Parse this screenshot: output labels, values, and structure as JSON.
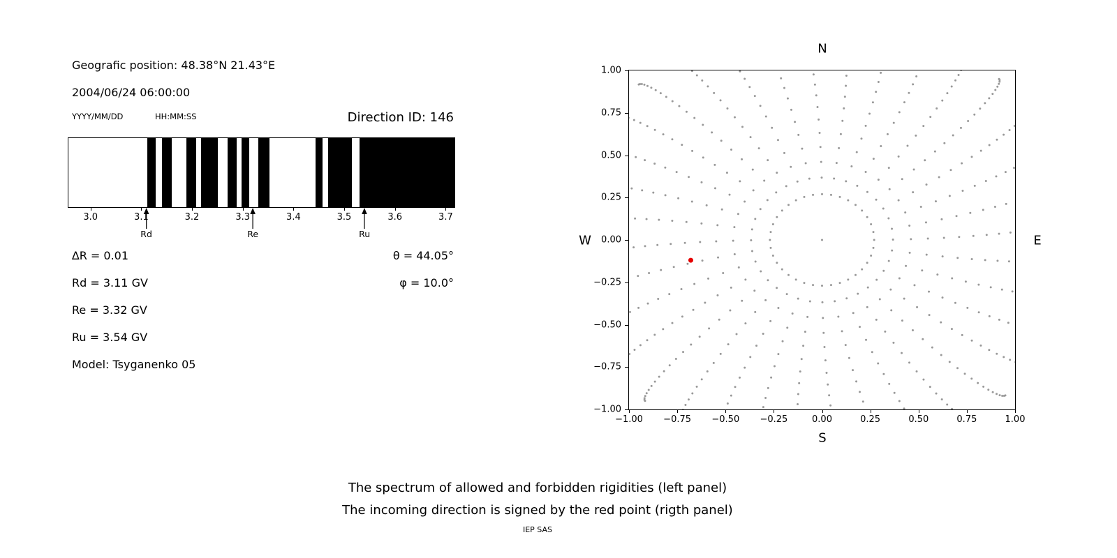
{
  "header": {
    "geographic_position": "Geografic position: 48.38°N 21.43°E",
    "datetime": "2004/06/24 06:00:00",
    "date_format_label": "YYYY/MM/DD",
    "time_format_label": "HH:MM:SS",
    "direction_id": "Direction ID: 146"
  },
  "parameters": {
    "delta_r": "∆R = 0.01",
    "rd": "Rd = 3.11 GV",
    "re": "Re = 3.32 GV",
    "ru": "Ru = 3.54 GV",
    "model": "Model: Tsyganenko 05",
    "theta": "θ = 44.05°",
    "phi": "φ = 10.0°"
  },
  "captions": {
    "line1": "The spectrum of allowed and forbidden rigidities (left panel)",
    "line2": "The incoming direction is signed by the red point (rigth panel)",
    "footer": "IEP SAS"
  },
  "chart_data": [
    {
      "type": "bar",
      "description": "Rigidity spectrum: black bands = forbidden rigidities, white = allowed (GV)",
      "xlim": [
        2.955,
        3.716
      ],
      "xticks": [
        3.0,
        3.1,
        3.2,
        3.3,
        3.4,
        3.5,
        3.6,
        3.7
      ],
      "black_intervals": [
        [
          3.11,
          3.127
        ],
        [
          3.139,
          3.158
        ],
        [
          3.188,
          3.207
        ],
        [
          3.216,
          3.25
        ],
        [
          3.269,
          3.287
        ],
        [
          3.296,
          3.312
        ],
        [
          3.329,
          3.352
        ],
        [
          3.442,
          3.456
        ],
        [
          3.467,
          3.514
        ],
        [
          3.529,
          3.716
        ]
      ],
      "markers": [
        {
          "label": "Rd",
          "x": 3.11
        },
        {
          "label": "Re",
          "x": 3.32
        },
        {
          "label": "Ru",
          "x": 3.54
        }
      ],
      "bar_color": "#000000"
    },
    {
      "type": "scatter",
      "description": "Asymptotic directions map; red point marks the incoming direction",
      "xlim": [
        -1,
        1
      ],
      "ylim": [
        -1,
        1
      ],
      "xticks": [
        -1,
        -0.75,
        -0.5,
        -0.25,
        0,
        0.25,
        0.5,
        0.75,
        1
      ],
      "yticks": [
        -1,
        -0.75,
        -0.5,
        -0.25,
        0,
        0.25,
        0.5,
        0.75,
        1
      ],
      "compass": {
        "north": "N",
        "south": "S",
        "east": "E",
        "west": "W"
      },
      "spokes": {
        "count": 36,
        "r_inner": 0.27,
        "r_outer": 1.32,
        "dots_per_spoke": 22,
        "curvature_deg": 6,
        "color": "#999999",
        "dot_radius": 1.5
      },
      "center_dot": {
        "x": 0.0,
        "y": 0.0
      },
      "red_point": {
        "x": -0.68,
        "y": -0.12,
        "color": "#e60000",
        "radius": 3.5
      }
    }
  ]
}
